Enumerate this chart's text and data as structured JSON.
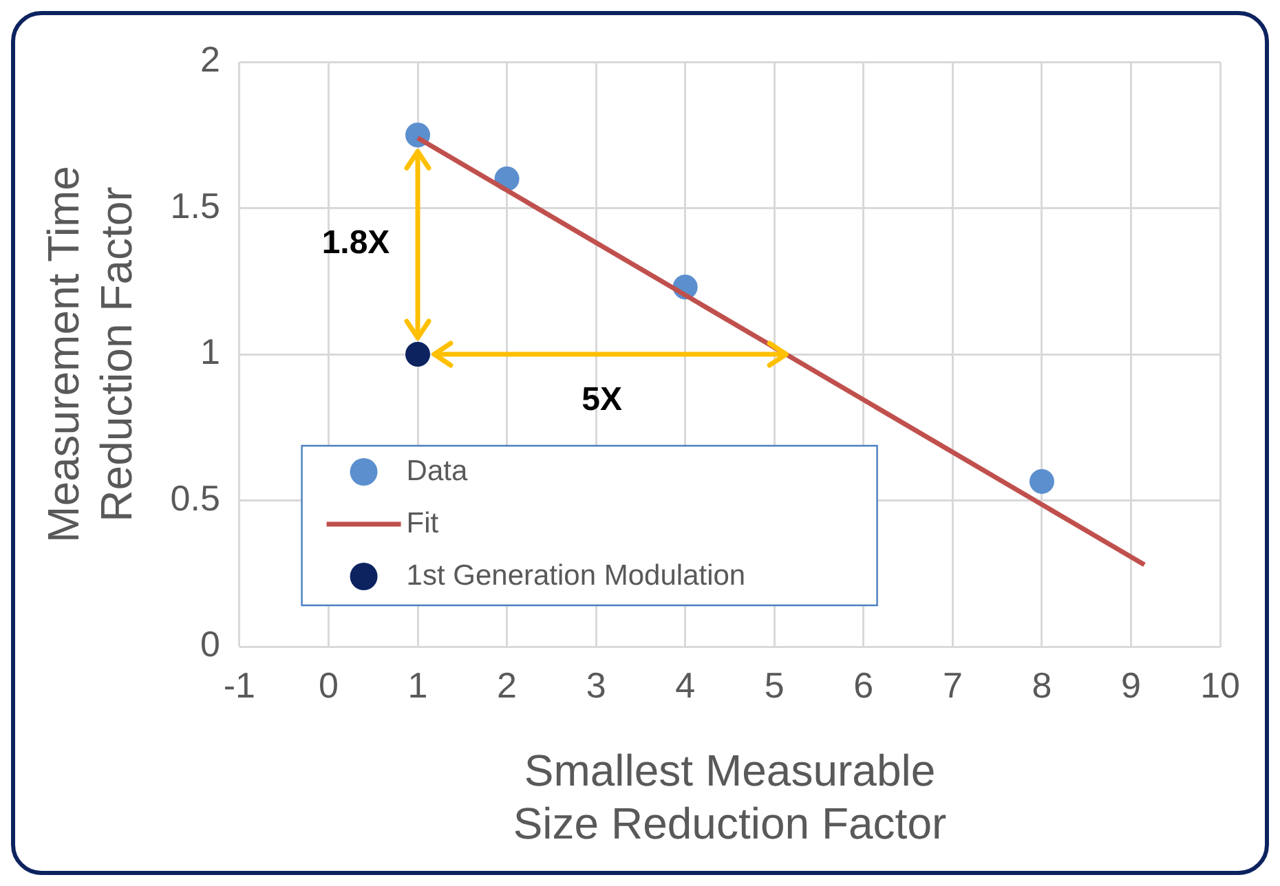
{
  "chart_data": {
    "type": "scatter",
    "xlabel": "Smallest Measurable\nSize Reduction Factor",
    "ylabel": "Measurement Time\nReduction Factor",
    "xlim": [
      -1,
      10
    ],
    "xticks": [
      -1,
      0,
      1,
      2,
      3,
      4,
      5,
      6,
      7,
      8,
      9,
      10
    ],
    "ylim": [
      0,
      2
    ],
    "yticks": [
      0,
      0.5,
      1,
      1.5,
      2
    ],
    "grid": true,
    "legend": "bottom left",
    "series": [
      {
        "name": "Data",
        "color": "#5b8fce",
        "marker": "circle",
        "x": [
          1,
          2,
          4,
          8
        ],
        "values": [
          1.75,
          1.6,
          1.23,
          0.565
        ]
      },
      {
        "name": "Fit",
        "type": "line",
        "color": "#c0504d",
        "marker": "none",
        "x": [
          1,
          9.15
        ],
        "values": [
          1.74,
          0.28
        ]
      },
      {
        "name": "1st Generation Modulation",
        "color": "#0d2360",
        "marker": "circle",
        "x": [
          1
        ],
        "values": [
          1
        ]
      }
    ],
    "annotations": [
      "1.8X",
      "5X"
    ]
  }
}
